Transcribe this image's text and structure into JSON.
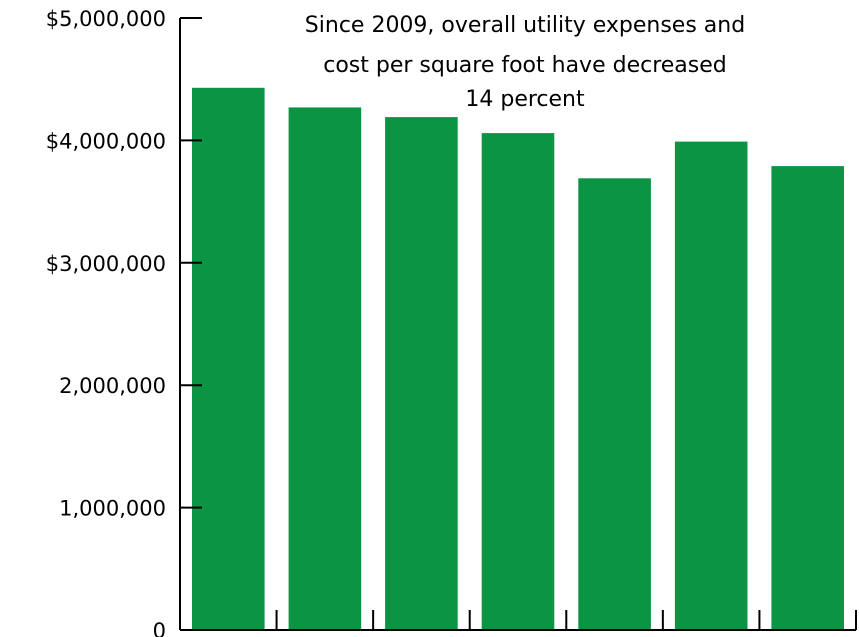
{
  "chart_data": {
    "type": "bar",
    "title": "",
    "xlabel": "",
    "ylabel": "",
    "categories": [
      "",
      "",
      "",
      "",
      "",
      "",
      ""
    ],
    "values": [
      4430000,
      4270000,
      4190000,
      4060000,
      3690000,
      3990000,
      3790000
    ],
    "ylim": [
      0,
      5000000
    ],
    "yticks": [
      0,
      1000000,
      2000000,
      3000000,
      4000000,
      5000000
    ],
    "ytick_labels": [
      "0",
      "1,000,000",
      "2,000,000",
      "$3,000,000",
      "$4,000,000",
      "$5,000,000"
    ],
    "grid": false,
    "bar_color": "#0b9444",
    "annotation": {
      "lines": [
        "Since 2009, overall utility expenses and",
        "cost per square foot have decreased",
        "14 percent"
      ]
    }
  }
}
